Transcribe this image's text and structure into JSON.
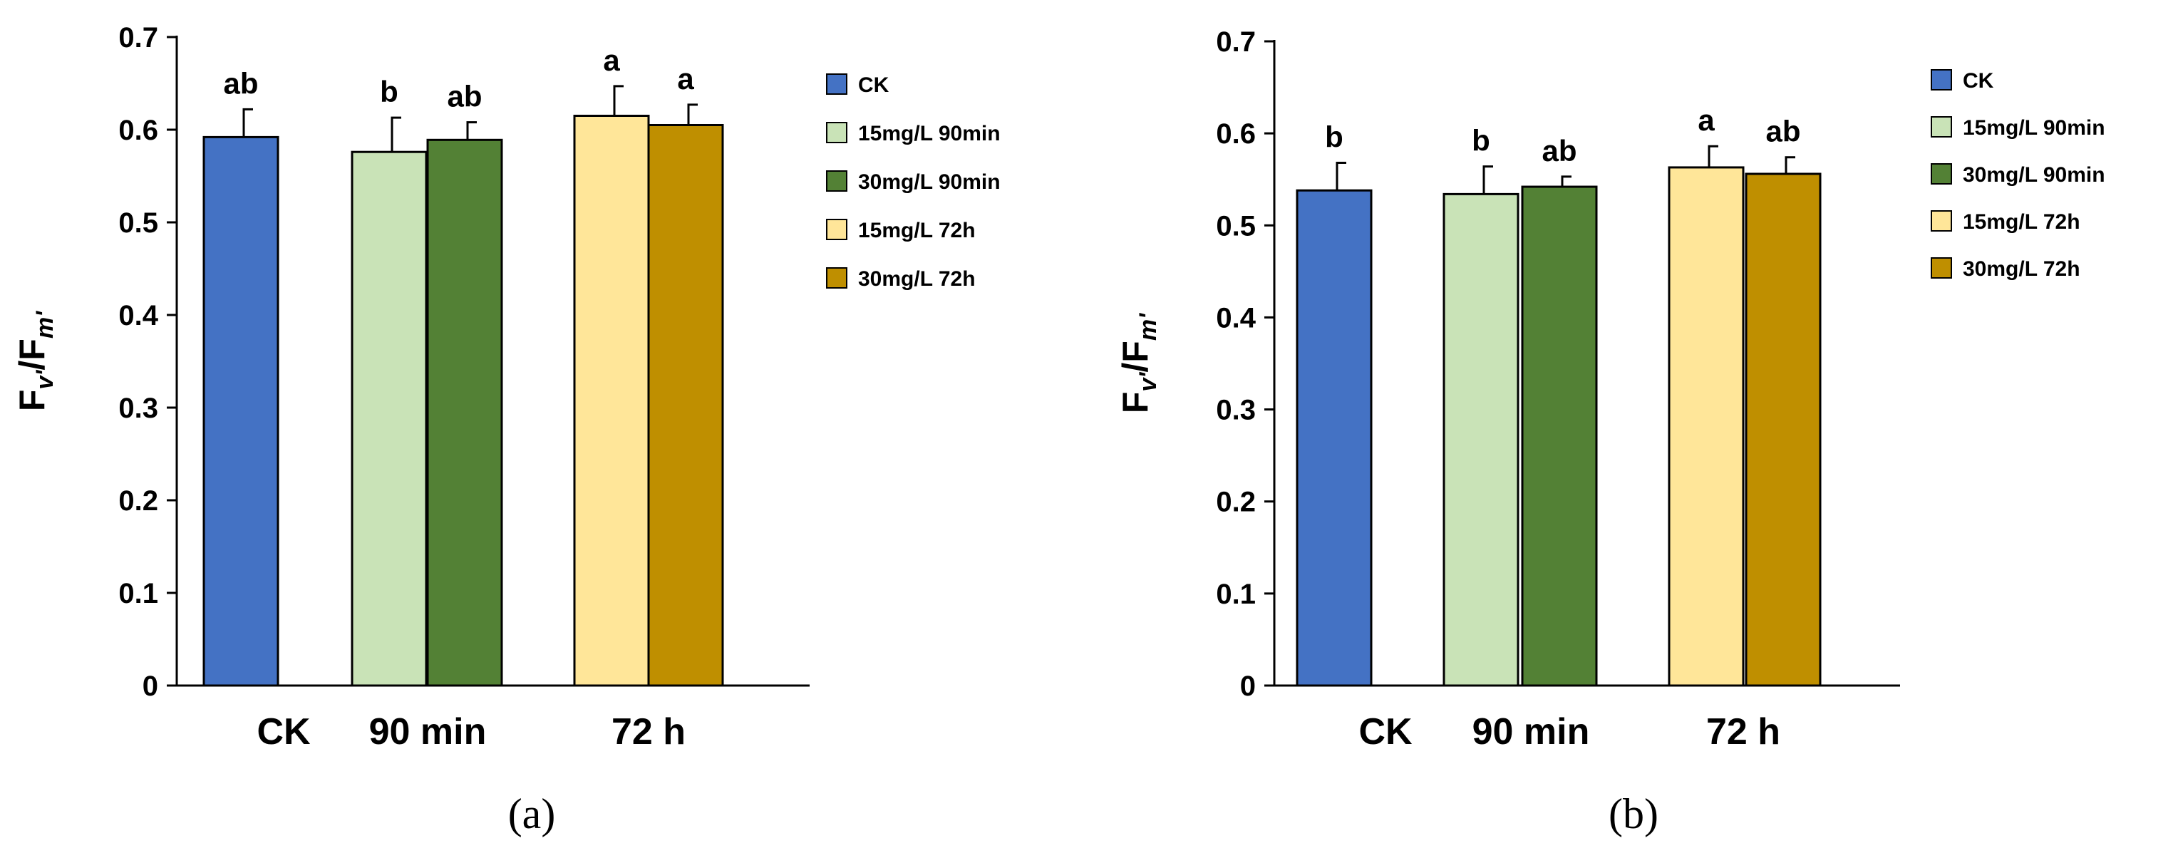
{
  "chart_data": [
    {
      "type": "bar",
      "panel_label": "(a)",
      "ylabel": {
        "main1": "F",
        "sub1": "v'",
        "slash": "/",
        "main2": "F",
        "sub2": "m'"
      },
      "ylim": [
        0,
        0.7
      ],
      "yticks": [
        "0",
        "0.1",
        "0.2",
        "0.3",
        "0.4",
        "0.5",
        "0.6",
        "0.7"
      ],
      "ytick_values": [
        0,
        0.1,
        0.2,
        0.3,
        0.4,
        0.5,
        0.6,
        0.7
      ],
      "groups": [
        {
          "label": "CK",
          "series": [
            0
          ]
        },
        {
          "label": "90 min",
          "series": [
            1,
            2
          ]
        },
        {
          "label": "72 h",
          "series": [
            3,
            4
          ]
        }
      ],
      "series": [
        {
          "name": "CK",
          "color": "#4472C4",
          "value": 0.592,
          "error": 0.03,
          "letter": "ab"
        },
        {
          "name": "15mg/L 90min",
          "color": "#C9E3B7",
          "value": 0.576,
          "error": 0.037,
          "letter": "b"
        },
        {
          "name": "30mg/L 90min",
          "color": "#538135",
          "value": 0.589,
          "error": 0.019,
          "letter": "ab"
        },
        {
          "name": "15mg/L 72h",
          "color": "#FFE699",
          "value": 0.615,
          "error": 0.032,
          "letter": "a"
        },
        {
          "name": "30mg/L 72h",
          "color": "#BF8F00",
          "value": 0.605,
          "error": 0.022,
          "letter": "a"
        }
      ],
      "legend_position": "right",
      "grid": false
    },
    {
      "type": "bar",
      "panel_label": "(b)",
      "ylabel": {
        "main1": "F",
        "sub1": "v'",
        "slash": "/",
        "main2": "F",
        "sub2": "m'"
      },
      "ylim": [
        0,
        0.7
      ],
      "yticks": [
        "0",
        "0.1",
        "0.2",
        "0.3",
        "0.4",
        "0.5",
        "0.6",
        "0.7"
      ],
      "ytick_values": [
        0,
        0.1,
        0.2,
        0.3,
        0.4,
        0.5,
        0.6,
        0.7
      ],
      "groups": [
        {
          "label": "CK",
          "series": [
            0
          ]
        },
        {
          "label": "90 min",
          "series": [
            1,
            2
          ]
        },
        {
          "label": "72 h",
          "series": [
            3,
            4
          ]
        }
      ],
      "series": [
        {
          "name": "CK",
          "color": "#4472C4",
          "value": 0.538,
          "error": 0.03,
          "letter": "b"
        },
        {
          "name": "15mg/L 90min",
          "color": "#C9E3B7",
          "value": 0.534,
          "error": 0.03,
          "letter": "b"
        },
        {
          "name": "30mg/L 90min",
          "color": "#538135",
          "value": 0.542,
          "error": 0.011,
          "letter": "ab"
        },
        {
          "name": "15mg/L 72h",
          "color": "#FFE699",
          "value": 0.563,
          "error": 0.023,
          "letter": "a"
        },
        {
          "name": "30mg/L 72h",
          "color": "#BF8F00",
          "value": 0.556,
          "error": 0.018,
          "letter": "ab"
        }
      ],
      "legend_position": "right",
      "grid": false
    }
  ]
}
